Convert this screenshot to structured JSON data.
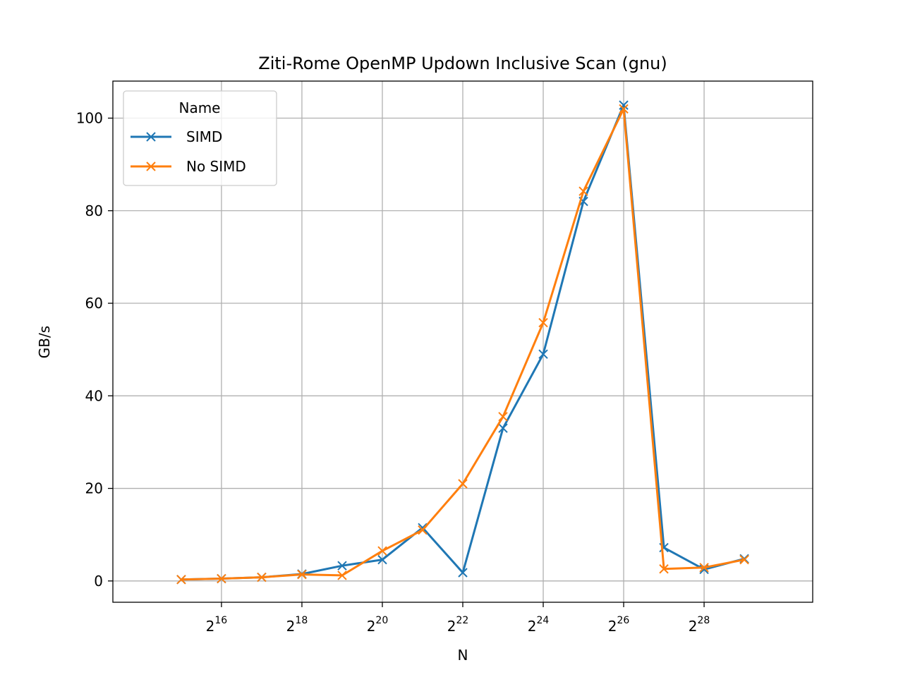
{
  "chart_data": {
    "type": "line",
    "title": "Ziti-Rome OpenMP Updown Inclusive Scan (gnu)",
    "xlabel": "N",
    "ylabel": "GB/s",
    "x_scale": "log2",
    "x_exponents": [
      15,
      16,
      17,
      18,
      19,
      20,
      21,
      22,
      23,
      24,
      25,
      26,
      27,
      28,
      29
    ],
    "x_tick_base": "2",
    "x_tick_exponents": [
      "16",
      "18",
      "20",
      "22",
      "24",
      "26",
      "28"
    ],
    "y_ticks": [
      "0",
      "20",
      "40",
      "60",
      "80",
      "100"
    ],
    "ylim": [
      -4.6,
      108
    ],
    "x_exponent_range": [
      13.3,
      30.7
    ],
    "grid": true,
    "legend_title": "Name",
    "legend_position": "upper-left",
    "series": [
      {
        "name": "SIMD",
        "color": "#1f77b4",
        "marker": "x",
        "values": [
          0.3,
          0.5,
          0.8,
          1.5,
          3.3,
          4.6,
          11.5,
          1.8,
          33.0,
          49.0,
          82.0,
          102.8,
          7.2,
          2.5,
          4.8
        ]
      },
      {
        "name": "No SIMD",
        "color": "#ff7f0e",
        "marker": "x",
        "values": [
          0.3,
          0.5,
          0.8,
          1.4,
          1.2,
          6.5,
          11.0,
          21.0,
          35.5,
          55.8,
          84.2,
          102.0,
          2.6,
          2.9,
          4.6
        ]
      }
    ]
  }
}
